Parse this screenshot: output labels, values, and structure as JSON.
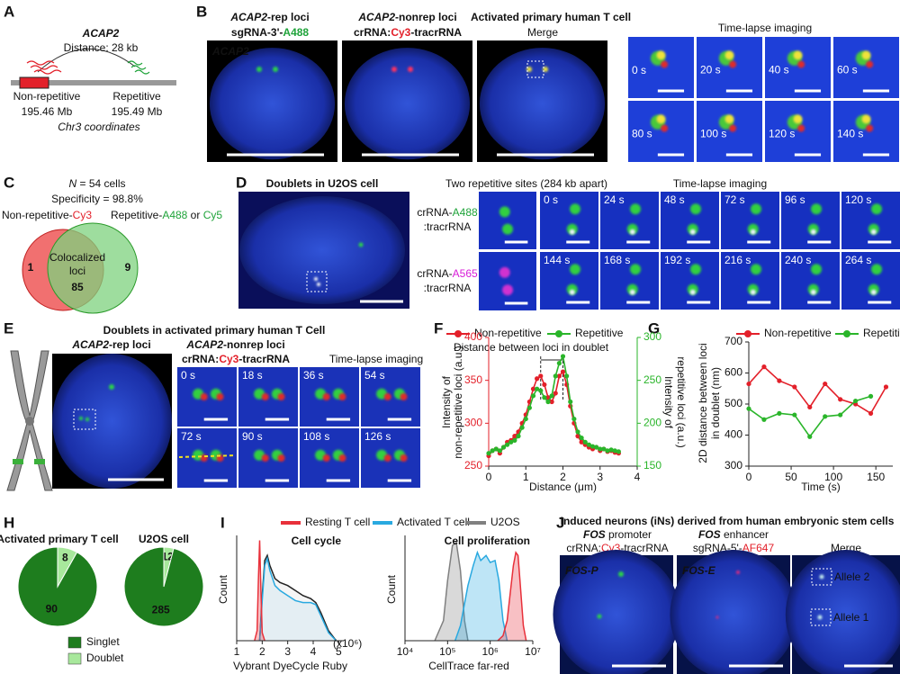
{
  "letters": [
    "A",
    "B",
    "C",
    "D",
    "E",
    "F",
    "G",
    "H",
    "I",
    "J"
  ],
  "a": {
    "title": "ACAP2",
    "distance": "Distance: 28 kb",
    "left": [
      "Non-repetitive",
      "195.46 Mb"
    ],
    "right": [
      "Repetitive",
      "195.49 Mb"
    ],
    "coords": "Chr3 coordinates"
  },
  "b": {
    "head1": [
      "ACAP2",
      "-rep loci"
    ],
    "head1b": [
      "sgRNA-3'-",
      "A488"
    ],
    "head2": [
      "ACAP2",
      "-nonrep loci"
    ],
    "head2b": [
      "crRNA:",
      "Cy3",
      "-tracrRNA"
    ],
    "title": "Activated primary human T cell",
    "merge": "Merge",
    "overlay": "ACAP2",
    "timelapse": "Time-lapse imaging",
    "times": [
      "0 s",
      "20 s",
      "40 s",
      "60 s",
      "80 s",
      "100 s",
      "120 s",
      "140 s"
    ]
  },
  "c": {
    "n": [
      "N",
      " = 54 cells"
    ],
    "specificity": "Specificity = 98.8%",
    "left": [
      "Non-repetitive-",
      "Cy3"
    ],
    "right": [
      "Repetitive-",
      "A488",
      " or ",
      "Cy5"
    ],
    "only_left": "1",
    "only_right": "9",
    "center": [
      "Colocalized",
      "loci"
    ],
    "both": "85"
  },
  "d": {
    "title": "Doublets in U2OS cell",
    "sites": "Two repetitive sites (284 kb apart)",
    "timelapse": "Time-lapse imaging",
    "row1": [
      "crRNA-",
      "A488"
    ],
    "row1b": ":tracrRNA",
    "row2": [
      "crRNA-",
      "A565"
    ],
    "row2b": ":tracrRNA",
    "times": [
      "0 s",
      "24 s",
      "48 s",
      "72 s",
      "96 s",
      "120 s",
      "144 s",
      "168 s",
      "192 s",
      "216 s",
      "240 s",
      "264 s"
    ]
  },
  "e": {
    "title": "Doublets in activated primary human T Cell",
    "head1": [
      "ACAP2",
      "-rep loci"
    ],
    "head1b": [
      "sgRNA-3'-",
      "A488"
    ],
    "head2": [
      "ACAP2",
      "-nonrep loci"
    ],
    "head2b": [
      "crRNA:",
      "Cy3",
      "-tracrRNA"
    ],
    "timelapse": "Time-lapse imaging",
    "times": [
      "0 s",
      "18 s",
      "36 s",
      "54 s",
      "72 s",
      "90 s",
      "108 s",
      "126 s"
    ]
  },
  "f": {
    "type": "line",
    "xlabel": "Distance (μm)",
    "ylabel": [
      "Intensity of",
      "non-repetitive loci (a.u.)"
    ],
    "y2label": [
      "Intensity of",
      "repetitive loci (a.u.)"
    ],
    "annotation": "Distance between loci in doublet",
    "x": [
      0,
      0.1,
      0.2,
      0.3,
      0.4,
      0.5,
      0.6,
      0.7,
      0.8,
      0.9,
      1.0,
      1.1,
      1.2,
      1.3,
      1.4,
      1.5,
      1.6,
      1.7,
      1.8,
      1.9,
      2.0,
      2.1,
      2.2,
      2.3,
      2.4,
      2.5,
      2.6,
      2.7,
      2.8,
      2.9,
      3.0,
      3.1,
      3.2,
      3.3,
      3.4,
      3.5
    ],
    "series": [
      {
        "name": "Non-repetitive",
        "color": "#e3202a",
        "values": [
          262,
          268,
          270,
          265,
          272,
          278,
          280,
          285,
          290,
          300,
          310,
          325,
          340,
          352,
          355,
          345,
          330,
          325,
          335,
          355,
          360,
          345,
          320,
          300,
          285,
          278,
          275,
          272,
          270,
          272,
          268,
          270,
          267,
          268,
          266,
          265
        ]
      },
      {
        "name": "Repetitive",
        "color": "#2ab52a",
        "axis": "y2",
        "values": [
          165,
          168,
          170,
          168,
          172,
          175,
          178,
          180,
          185,
          195,
          205,
          218,
          232,
          240,
          238,
          230,
          225,
          232,
          255,
          270,
          278,
          255,
          225,
          205,
          190,
          183,
          178,
          175,
          173,
          172,
          170,
          170,
          168,
          169,
          168,
          167
        ]
      }
    ],
    "xlim": [
      0,
      4
    ],
    "xticks": [
      0,
      1,
      2,
      3,
      4
    ],
    "ylim": [
      250,
      400
    ],
    "yticks": [
      250,
      300,
      350,
      400
    ],
    "y2lim": [
      150,
      300
    ],
    "y2ticks": [
      150,
      200,
      250,
      300
    ]
  },
  "g": {
    "type": "line",
    "xlabel": "Time (s)",
    "ylabel": [
      "2D distance between loci",
      "in doublet (nm)"
    ],
    "series": [
      {
        "name": "Non-repetitive",
        "color": "#e3202a",
        "x": [
          0,
          18,
          36,
          54,
          72,
          90,
          108,
          126,
          144,
          162
        ],
        "values": [
          565,
          620,
          575,
          555,
          490,
          565,
          515,
          500,
          470,
          555
        ]
      },
      {
        "name": "Repetitive",
        "color": "#2ab52a",
        "x": [
          0,
          18,
          36,
          54,
          72,
          90,
          108,
          126,
          144
        ],
        "values": [
          485,
          450,
          470,
          465,
          395,
          460,
          465,
          510,
          525
        ]
      }
    ],
    "xlim": [
      0,
      170
    ],
    "xticks": [
      0,
      50,
      100,
      150
    ],
    "ylim": [
      300,
      700
    ],
    "yticks": [
      300,
      400,
      500,
      600,
      700
    ]
  },
  "h": {
    "type": "pie",
    "categories": [
      "Singlet",
      "Doublet"
    ],
    "colors": [
      "#1e7d1e",
      "#a8e89c"
    ],
    "charts": [
      {
        "title": "Activated primary T cell",
        "values": [
          90,
          8
        ]
      },
      {
        "title": "U2OS cell",
        "values": [
          285,
          12
        ]
      }
    ]
  },
  "i": {
    "type": "area",
    "legend": [
      {
        "name": "Resting T cell",
        "color": "#e8303a"
      },
      {
        "name": "Activated T cell",
        "color": "#29a9e0"
      },
      {
        "name": "U2OS",
        "color": "#808080"
      }
    ],
    "charts": [
      {
        "title": "Cell cycle",
        "xlabel": "Vybrant DyeCycle Ruby",
        "xunit": "(x10⁶)",
        "ylabel": "Count",
        "xlim": [
          1,
          5.2
        ],
        "xticks": [
          1,
          2,
          3,
          4,
          5
        ],
        "ylim": [
          0,
          105
        ],
        "series": [
          {
            "name": "U2OS",
            "x": [
              1.9,
              2.0,
              2.1,
              2.2,
              2.3,
              2.5,
              2.7,
              3.0,
              3.3,
              3.6,
              3.9,
              4.1,
              4.3,
              4.6,
              4.9
            ],
            "values": [
              0,
              45,
              80,
              85,
              75,
              62,
              58,
              55,
              50,
              45,
              42,
              38,
              28,
              10,
              0
            ]
          },
          {
            "name": "Activated T cell",
            "x": [
              1.9,
              2.0,
              2.1,
              2.2,
              2.3,
              2.5,
              2.7,
              3.0,
              3.3,
              3.6,
              3.9,
              4.1,
              4.3,
              4.6,
              4.9
            ],
            "values": [
              0,
              40,
              75,
              82,
              70,
              55,
              50,
              45,
              40,
              38,
              38,
              36,
              25,
              8,
              0
            ]
          },
          {
            "name": "Resting T cell",
            "x": [
              1.7,
              1.8,
              1.85,
              1.9,
              1.95,
              2.0,
              2.1
            ],
            "values": [
              0,
              10,
              60,
              100,
              50,
              8,
              0
            ]
          }
        ]
      },
      {
        "title": "Cell proliferation",
        "xlabel": "CellTrace far-red",
        "ylabel": "Count",
        "log": true,
        "xlim": [
          10000,
          10000000
        ],
        "xticks": [
          {
            "value": 10000,
            "label": "10⁴"
          },
          {
            "value": 100000,
            "label": "10⁵"
          },
          {
            "value": 1000000,
            "label": "10⁶"
          },
          {
            "value": 10000000,
            "label": "10⁷"
          }
        ],
        "ylim": [
          0,
          105
        ],
        "series": [
          {
            "name": "U2OS",
            "x": [
              50000,
              80000,
              100000,
              130000,
              160000,
              200000,
              250000,
              300000
            ],
            "values": [
              0,
              20,
              60,
              95,
              98,
              70,
              20,
              0
            ]
          },
          {
            "name": "Activated T cell",
            "x": [
              150000,
              200000,
              300000,
              400000,
              500000,
              600000,
              800000,
              1000000,
              1300000,
              1600000,
              2000000,
              2500000
            ],
            "values": [
              0,
              15,
              55,
              75,
              88,
              80,
              85,
              78,
              80,
              60,
              20,
              0
            ]
          },
          {
            "name": "Resting T cell",
            "x": [
              1500000,
              2000000,
              2500000,
              3000000,
              3500000,
              4000000,
              4500000,
              5000000,
              6000000,
              7000000
            ],
            "values": [
              0,
              5,
              20,
              50,
              75,
              88,
              85,
              60,
              15,
              0
            ]
          }
        ]
      }
    ]
  },
  "j": {
    "title": "Induced neurons (iNs) derived from human embryonic stem cells",
    "head1": [
      "FOS",
      " promoter"
    ],
    "head1b": [
      "crRNA:",
      "Cy3",
      "-tracrRNA"
    ],
    "head2": [
      "FOS",
      " enhancer"
    ],
    "head2b": [
      "sgRNA-5'-",
      "AF647"
    ],
    "merge": "Merge",
    "overlay1": "FOS-P",
    "overlay2": "FOS-E",
    "allele1": "Allele 1",
    "allele2": "Allele 2"
  }
}
